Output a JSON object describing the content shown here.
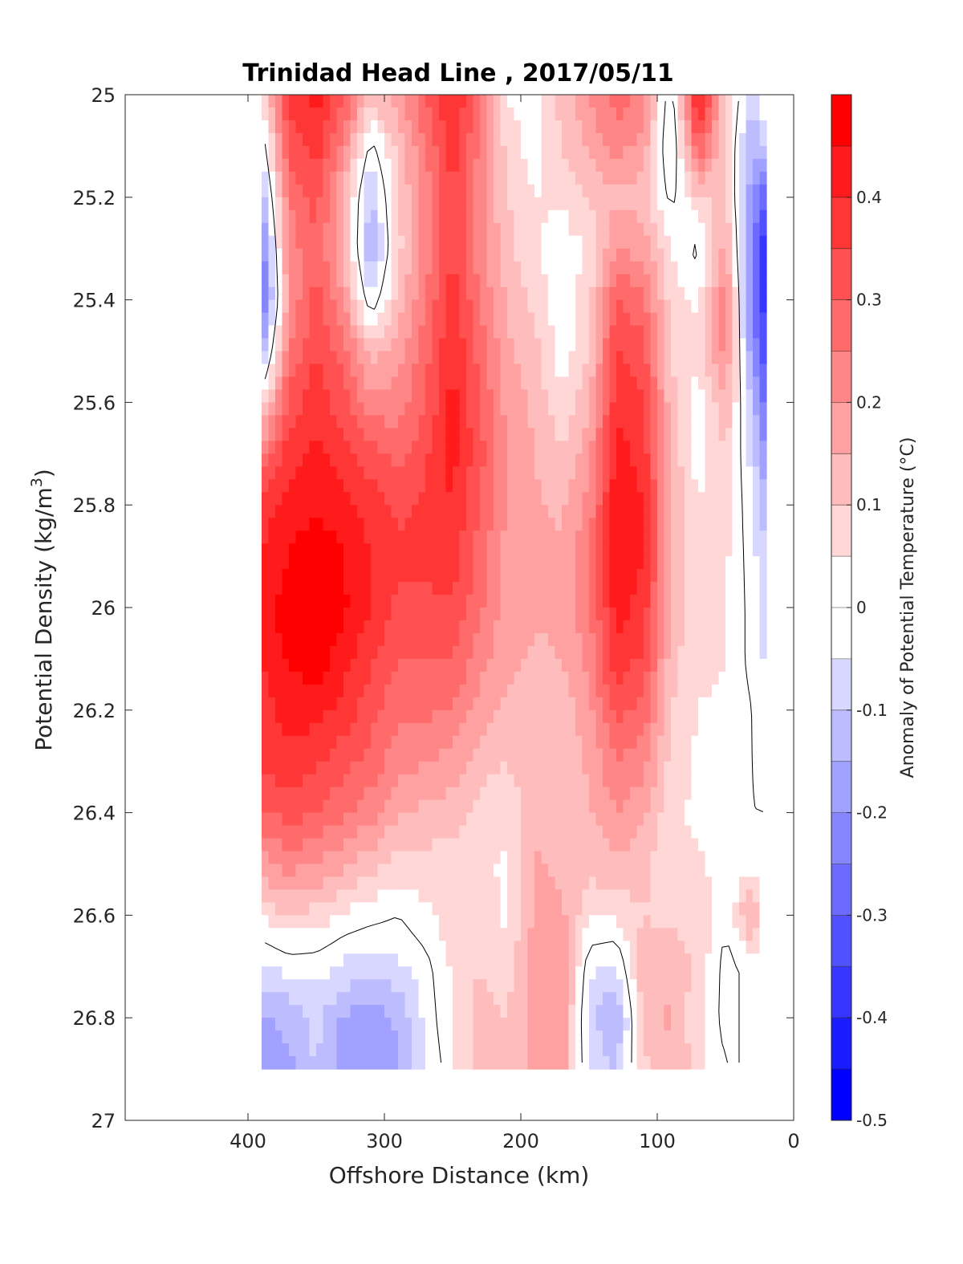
{
  "chart_data": {
    "type": "heatmap",
    "title": "Trinidad Head Line , 2017/05/11",
    "xlabel": "Offshore Distance (km)",
    "ylabel_main": "Potential Density (kg/m",
    "ylabel_sup": "3",
    "ylabel_close": ")",
    "colorbar_label": "Anomaly of Potential Temperature (°C)",
    "xlim": [
      490,
      0
    ],
    "ylim": [
      25,
      27
    ],
    "y_reversed": true,
    "x_reversed": true,
    "x_ticks": [
      "400",
      "300",
      "200",
      "100",
      "0"
    ],
    "x_tick_values": [
      400,
      300,
      200,
      100,
      0
    ],
    "y_ticks": [
      "25",
      "25.2",
      "25.4",
      "25.6",
      "25.8",
      "26",
      "26.2",
      "26.4",
      "26.6",
      "26.8",
      "27"
    ],
    "y_tick_values": [
      25,
      25.2,
      25.4,
      25.6,
      25.8,
      26,
      26.2,
      26.4,
      26.6,
      26.8,
      27
    ],
    "colorbar_ticks": [
      "-0.5",
      "-0.4",
      "-0.3",
      "-0.2",
      "-0.1",
      "0",
      "0.1",
      "0.2",
      "0.3",
      "0.4"
    ],
    "colorbar_tick_values": [
      -0.5,
      -0.4,
      -0.3,
      -0.2,
      -0.1,
      0,
      0.1,
      0.2,
      0.3,
      0.4
    ],
    "colorbar_range": [
      -0.5,
      0.5
    ],
    "contour_interval": 0.05,
    "zero_contour_color": "#000000",
    "colormap": {
      "negative": "#0000ff",
      "zero": "#ffffff",
      "positive": "#ff0000"
    },
    "data_extent": {
      "x": [
        390,
        20
      ],
      "y": [
        25,
        26.9
      ]
    },
    "grid": {
      "x": [
        390,
        370,
        350,
        330,
        310,
        290,
        270,
        250,
        230,
        210,
        190,
        170,
        150,
        130,
        110,
        90,
        70,
        50,
        30,
        20
      ],
      "y": [
        25.0,
        25.1,
        25.2,
        25.3,
        25.4,
        25.5,
        25.6,
        25.7,
        25.8,
        25.9,
        26.0,
        26.1,
        26.2,
        26.3,
        26.4,
        26.5,
        26.6,
        26.7,
        26.8,
        26.9
      ],
      "values": [
        [
          0.05,
          0.38,
          0.42,
          0.32,
          0.12,
          0.18,
          0.3,
          0.4,
          0.28,
          0.05,
          0.02,
          0.12,
          0.2,
          0.28,
          0.22,
          -0.05,
          0.45,
          0.1,
          -0.1,
          0.05
        ],
        [
          -0.05,
          0.32,
          0.38,
          0.22,
          -0.02,
          0.12,
          0.25,
          0.38,
          0.24,
          0.08,
          0.02,
          0.1,
          0.16,
          0.22,
          0.18,
          -0.08,
          0.3,
          0.08,
          -0.15,
          -0.1
        ],
        [
          -0.15,
          0.25,
          0.32,
          0.15,
          -0.12,
          0.1,
          0.22,
          0.35,
          0.22,
          0.1,
          0.05,
          0.06,
          0.1,
          0.14,
          0.12,
          -0.02,
          0.1,
          0.1,
          -0.2,
          -0.3
        ],
        [
          -0.25,
          0.22,
          0.3,
          0.15,
          -0.15,
          0.08,
          0.22,
          0.35,
          0.22,
          0.12,
          0.06,
          0.02,
          0.06,
          0.2,
          0.18,
          0.05,
          -0.02,
          0.18,
          -0.25,
          -0.4
        ],
        [
          -0.3,
          0.2,
          0.32,
          0.2,
          -0.05,
          0.12,
          0.25,
          0.38,
          0.25,
          0.14,
          0.08,
          0.02,
          0.08,
          0.3,
          0.26,
          0.08,
          0.04,
          0.25,
          -0.25,
          -0.4
        ],
        [
          -0.15,
          0.25,
          0.35,
          0.28,
          0.12,
          0.18,
          0.28,
          0.4,
          0.28,
          0.16,
          0.12,
          0.02,
          0.1,
          0.35,
          0.32,
          0.1,
          0.06,
          0.22,
          -0.2,
          -0.35
        ],
        [
          0.05,
          0.32,
          0.38,
          0.32,
          0.22,
          0.22,
          0.3,
          0.42,
          0.3,
          0.18,
          0.14,
          0.06,
          0.14,
          0.38,
          0.36,
          0.12,
          0.02,
          0.15,
          -0.12,
          -0.3
        ],
        [
          0.25,
          0.38,
          0.42,
          0.38,
          0.32,
          0.28,
          0.34,
          0.42,
          0.32,
          0.2,
          0.15,
          0.1,
          0.18,
          0.42,
          0.38,
          0.14,
          0.02,
          0.1,
          -0.08,
          -0.22
        ],
        [
          0.38,
          0.42,
          0.45,
          0.42,
          0.38,
          0.34,
          0.36,
          0.4,
          0.3,
          0.2,
          0.16,
          0.14,
          0.22,
          0.44,
          0.4,
          0.15,
          0.05,
          0.08,
          -0.05,
          -0.15
        ],
        [
          0.4,
          0.45,
          0.48,
          0.45,
          0.4,
          0.36,
          0.36,
          0.38,
          0.28,
          0.18,
          0.16,
          0.16,
          0.24,
          0.45,
          0.4,
          0.16,
          0.06,
          0.06,
          -0.03,
          -0.1
        ],
        [
          0.42,
          0.48,
          0.5,
          0.46,
          0.4,
          0.34,
          0.34,
          0.34,
          0.26,
          0.18,
          0.16,
          0.16,
          0.24,
          0.42,
          0.38,
          0.14,
          0.06,
          0.05,
          -0.02,
          -0.08
        ],
        [
          0.4,
          0.46,
          0.48,
          0.42,
          0.36,
          0.3,
          0.3,
          0.3,
          0.22,
          0.16,
          0.14,
          0.15,
          0.22,
          0.38,
          0.34,
          0.12,
          0.06,
          0.05,
          -0.02,
          -0.06
        ],
        [
          0.38,
          0.42,
          0.42,
          0.38,
          0.32,
          0.26,
          0.26,
          0.25,
          0.18,
          0.14,
          0.14,
          0.12,
          0.18,
          0.32,
          0.28,
          0.1,
          0.05,
          0.04,
          0.0,
          -0.04
        ],
        [
          0.36,
          0.38,
          0.36,
          0.32,
          0.28,
          0.22,
          0.2,
          0.18,
          0.12,
          0.1,
          0.14,
          0.12,
          0.16,
          0.25,
          0.22,
          0.08,
          0.04,
          0.03,
          0.0,
          -0.02
        ],
        [
          0.3,
          0.32,
          0.3,
          0.26,
          0.22,
          0.16,
          0.14,
          0.12,
          0.08,
          0.06,
          0.14,
          0.12,
          0.14,
          0.2,
          0.16,
          0.06,
          0.04,
          0.02,
          0.0,
          0.0
        ],
        [
          0.18,
          0.22,
          0.2,
          0.16,
          0.12,
          0.08,
          0.08,
          0.08,
          0.06,
          0.04,
          0.16,
          0.14,
          0.12,
          0.14,
          0.12,
          0.05,
          0.06,
          0.02,
          0.02,
          0.02
        ],
        [
          0.06,
          0.1,
          0.08,
          0.04,
          0.02,
          0.0,
          0.04,
          0.08,
          0.08,
          0.04,
          0.16,
          0.16,
          0.06,
          0.06,
          0.1,
          0.08,
          0.1,
          0.0,
          0.18,
          0.0
        ],
        [
          -0.06,
          -0.03,
          -0.03,
          -0.06,
          -0.08,
          -0.06,
          -0.02,
          0.06,
          0.1,
          0.08,
          0.18,
          0.2,
          -0.04,
          -0.06,
          0.14,
          0.14,
          0.08,
          -0.02,
          0.02,
          0.0
        ],
        [
          -0.16,
          -0.14,
          -0.08,
          -0.16,
          -0.18,
          -0.14,
          -0.04,
          0.06,
          0.12,
          0.1,
          0.18,
          0.2,
          -0.08,
          -0.16,
          0.12,
          0.16,
          0.06,
          -0.02,
          0.02,
          0.0
        ],
        [
          -0.18,
          -0.16,
          -0.1,
          -0.18,
          -0.2,
          -0.16,
          -0.06,
          0.04,
          0.12,
          0.1,
          0.16,
          0.18,
          -0.06,
          -0.1,
          0.08,
          0.14,
          0.08,
          0.0,
          0.0,
          0.0
        ]
      ]
    }
  }
}
